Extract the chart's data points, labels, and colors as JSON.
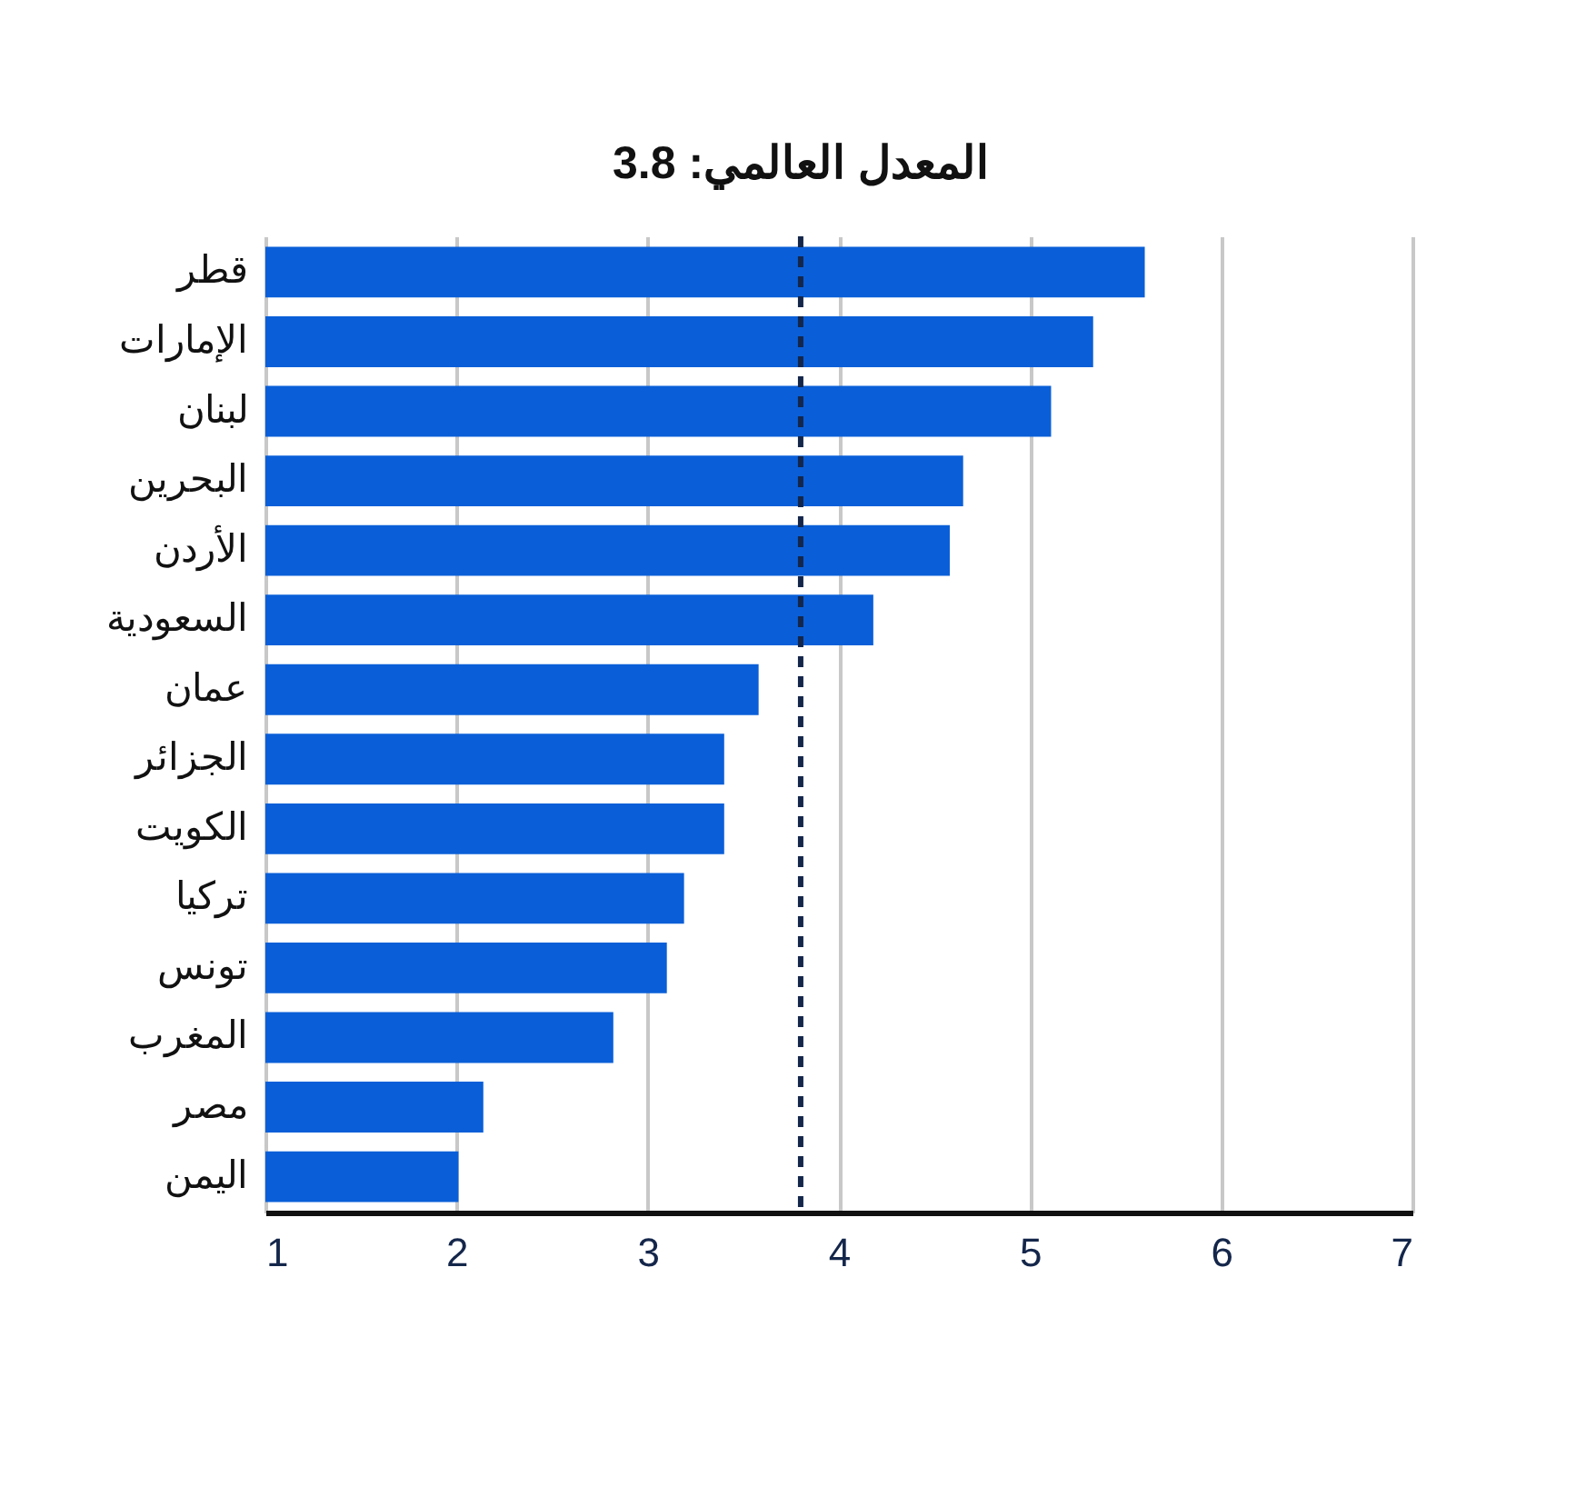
{
  "chart_data": {
    "type": "bar",
    "orientation": "horizontal",
    "categories": [
      "قطر",
      "الإمارات",
      "لبنان",
      "البحرين",
      "الأردن",
      "السعودية",
      "عمان",
      "الجزائر",
      "الكويت",
      "تركيا",
      "تونس",
      "المغرب",
      "مصر",
      "اليمن"
    ],
    "values": [
      5.6,
      5.33,
      5.11,
      4.65,
      4.58,
      4.18,
      3.58,
      3.4,
      3.4,
      3.19,
      3.1,
      2.82,
      2.14,
      2.01
    ],
    "color": "#0a5fd8",
    "xlim": [
      1,
      7
    ],
    "xticks": [
      1,
      2,
      3,
      4,
      5,
      6,
      7
    ],
    "grid": "x",
    "ref_lines": [
      {
        "axis": "x",
        "value": 3.8,
        "label": "المعدل العالمي: 3.8",
        "color": "#14264a",
        "line_style": "dashed"
      }
    ]
  }
}
